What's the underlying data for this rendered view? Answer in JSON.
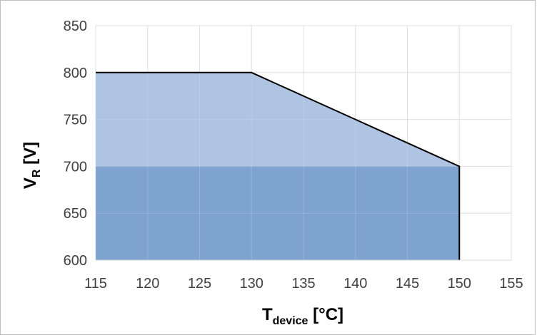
{
  "chart_data": {
    "type": "area",
    "xlabel_main": "T",
    "xlabel_sub": "device",
    "xlabel_unit": " [°C]",
    "ylabel_main": "V",
    "ylabel_sub": "R",
    "ylabel_unit": " [V]",
    "xlim": [
      115,
      155
    ],
    "ylim": [
      600,
      850
    ],
    "x_ticks": [
      115,
      120,
      125,
      130,
      135,
      140,
      145,
      150,
      155
    ],
    "y_ticks": [
      600,
      650,
      700,
      750,
      800,
      850
    ],
    "grid": true,
    "series": [
      {
        "x": [
          115,
          130,
          150
        ],
        "y": [
          800,
          800,
          700
        ],
        "fill": "#a7bfdf",
        "outline": "#000000"
      },
      {
        "x": [
          115,
          150
        ],
        "y": [
          700,
          700
        ],
        "fill": "#7aa0cd"
      }
    ]
  }
}
